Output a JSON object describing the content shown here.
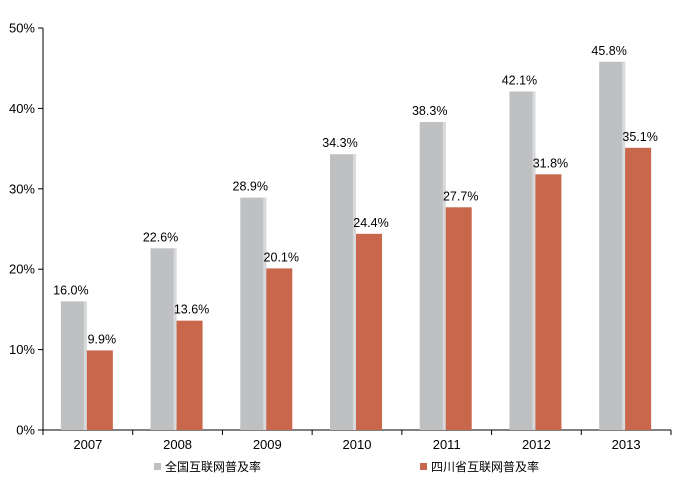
{
  "chart_data": {
    "type": "bar",
    "categories": [
      "2007",
      "2008",
      "2009",
      "2010",
      "2011",
      "2012",
      "2013"
    ],
    "series": [
      {
        "name": "全国互联网普及率",
        "values": [
          16.0,
          22.6,
          28.9,
          34.3,
          38.3,
          42.1,
          45.8
        ],
        "labels": [
          "16.0%",
          "22.6%",
          "28.9%",
          "34.3%",
          "38.3%",
          "42.1%",
          "45.8%"
        ],
        "color": "#bfc0c1"
      },
      {
        "name": "四川省互联网普及率",
        "values": [
          9.9,
          13.6,
          20.1,
          24.4,
          27.7,
          31.8,
          35.1
        ],
        "labels": [
          "9.9%",
          "13.6%",
          "20.1%",
          "24.4%",
          "27.7%",
          "31.8%",
          "35.1%"
        ],
        "color": "#c8674c"
      }
    ],
    "yticks": [
      0,
      10,
      20,
      30,
      40,
      50
    ],
    "ytick_labels": [
      "0%",
      "10%",
      "20%",
      "30%",
      "40%",
      "50%"
    ],
    "ylim": [
      0,
      50
    ],
    "grid": false,
    "legend_position": "bottom",
    "title": "",
    "xlabel": "",
    "ylabel": ""
  }
}
